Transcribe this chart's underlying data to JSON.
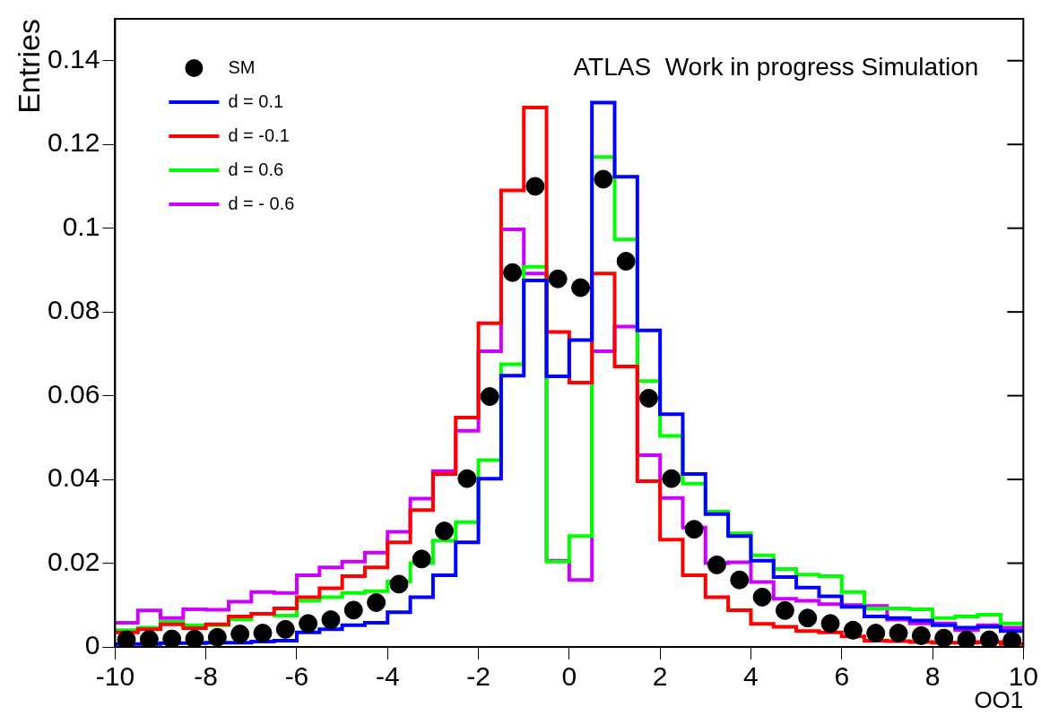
{
  "chart_data": {
    "type": "histogram",
    "xlabel": "OO1",
    "ylabel": "Entries",
    "annotations": [
      "ATLAS  Work in progress Simulation"
    ],
    "bins": [
      -10,
      -9.5,
      -9,
      -8.5,
      -8,
      -7.5,
      -7,
      -6.5,
      -6,
      -5.5,
      -5,
      -4.5,
      -4,
      -3.5,
      -3,
      -2.5,
      -2,
      -1.5,
      -1,
      -0.5,
      0,
      0.5,
      1,
      1.5,
      2,
      2.5,
      3,
      3.5,
      4,
      4.5,
      5,
      5.5,
      6,
      6.5,
      7,
      7.5,
      8,
      8.5,
      9,
      9.5,
      10
    ],
    "xlim": [
      -10,
      10
    ],
    "xticks": [
      -10,
      -8,
      -6,
      -4,
      -2,
      0,
      2,
      4,
      6,
      8,
      10
    ],
    "ylim": [
      0,
      0.15
    ],
    "yticks": [
      0,
      0.02,
      0.04,
      0.06,
      0.08,
      0.1,
      0.12,
      0.14
    ],
    "grid": false,
    "legend": "top left",
    "series": [
      {
        "name": "SM",
        "type": "scatter",
        "marker": "circle",
        "color": "#000000",
        "x": [
          -9.75,
          -9.25,
          -8.75,
          -8.25,
          -7.75,
          -7.25,
          -6.75,
          -6.25,
          -5.75,
          -5.25,
          -4.75,
          -4.25,
          -3.75,
          -3.25,
          -2.75,
          -2.25,
          -1.75,
          -1.25,
          -0.75,
          -0.25,
          0.25,
          0.75,
          1.25,
          1.75,
          2.25,
          2.75,
          3.25,
          3.75,
          4.25,
          4.75,
          5.25,
          5.75,
          6.25,
          6.75,
          7.25,
          7.75,
          8.25,
          8.75,
          9.25,
          9.75
        ],
        "values": [
          0.0017,
          0.0018,
          0.0019,
          0.0019,
          0.0023,
          0.0031,
          0.0033,
          0.0042,
          0.0056,
          0.0065,
          0.0088,
          0.0106,
          0.015,
          0.021,
          0.0277,
          0.0402,
          0.0598,
          0.0894,
          0.11,
          0.0879,
          0.0858,
          0.1117,
          0.0921,
          0.0594,
          0.0402,
          0.0281,
          0.0196,
          0.016,
          0.0119,
          0.0087,
          0.0069,
          0.0056,
          0.004,
          0.0033,
          0.0033,
          0.0027,
          0.0021,
          0.0017,
          0.0017,
          0.0015
        ]
      },
      {
        "name": "d = 0.1",
        "color": "#0000ff",
        "values": [
          0.0007,
          0.0007,
          0.0009,
          0.0009,
          0.001,
          0.001,
          0.0013,
          0.0015,
          0.0035,
          0.0042,
          0.0052,
          0.0058,
          0.0083,
          0.0119,
          0.0171,
          0.025,
          0.0402,
          0.0648,
          0.0875,
          0.0646,
          0.0733,
          0.13,
          0.1123,
          0.0756,
          0.0556,
          0.0413,
          0.0317,
          0.0265,
          0.0206,
          0.0167,
          0.0142,
          0.0121,
          0.0096,
          0.0073,
          0.0069,
          0.0063,
          0.0052,
          0.0046,
          0.0048,
          0.0038
        ]
      },
      {
        "name": "d = -0.1",
        "color": "#ff0000",
        "values": [
          0.0035,
          0.0042,
          0.0054,
          0.0045,
          0.0054,
          0.0073,
          0.0079,
          0.0092,
          0.0119,
          0.014,
          0.0169,
          0.019,
          0.025,
          0.0327,
          0.0413,
          0.0548,
          0.0773,
          0.109,
          0.1288,
          0.0752,
          0.0631,
          0.0892,
          0.067,
          0.0396,
          0.0256,
          0.0171,
          0.0119,
          0.0088,
          0.0055,
          0.0048,
          0.0038,
          0.0035,
          0.0025,
          0.0015,
          0.0014,
          0.0012,
          0.001,
          0.001,
          0.0012,
          0.0007
        ]
      },
      {
        "name": "d = 0.6",
        "color": "#00ff00",
        "values": [
          0.004,
          0.0046,
          0.006,
          0.0052,
          0.0052,
          0.0066,
          0.0079,
          0.0075,
          0.011,
          0.0119,
          0.0129,
          0.0133,
          0.0156,
          0.02,
          0.0254,
          0.0298,
          0.0446,
          0.0675,
          0.0908,
          0.0204,
          0.0265,
          0.117,
          0.0973,
          0.0635,
          0.0504,
          0.039,
          0.0323,
          0.0271,
          0.0219,
          0.0186,
          0.0173,
          0.0169,
          0.0131,
          0.0092,
          0.0092,
          0.009,
          0.0069,
          0.0073,
          0.0077,
          0.0056
        ]
      },
      {
        "name": "d = - 0.6",
        "color": "#cc00ff",
        "values": [
          0.0058,
          0.0087,
          0.0069,
          0.009,
          0.0089,
          0.0108,
          0.0131,
          0.0129,
          0.0171,
          0.019,
          0.0204,
          0.0225,
          0.0275,
          0.0354,
          0.042,
          0.0516,
          0.0706,
          0.0997,
          0.0892,
          0.0206,
          0.016,
          0.0706,
          0.0765,
          0.0458,
          0.0356,
          0.0285,
          0.02,
          0.0202,
          0.0155,
          0.0115,
          0.011,
          0.0102,
          0.01,
          0.0098,
          0.0065,
          0.0056,
          0.0056,
          0.004,
          0.0052,
          0.0046
        ]
      }
    ]
  }
}
